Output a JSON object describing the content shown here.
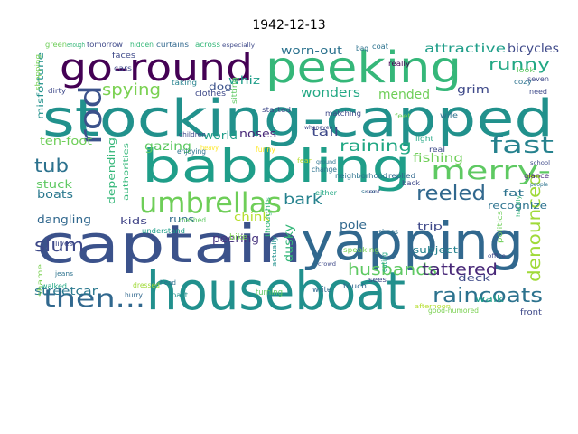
{
  "chart_data": {
    "type": "wordcloud",
    "title": "1942-12-13",
    "background": "#ffffff",
    "palette": "viridis",
    "words": [
      {
        "text": "stocking-capped",
        "color": "#21918c"
      },
      {
        "text": "babbling",
        "color": "#1f9e89"
      },
      {
        "text": "houseboat",
        "color": "#21908d"
      },
      {
        "text": "captain",
        "color": "#3b528b"
      },
      {
        "text": "yapping",
        "color": "#31688e"
      },
      {
        "text": "peeking",
        "color": "#35b779"
      },
      {
        "text": "go-round",
        "color": "#440154"
      },
      {
        "text": "umbrellas",
        "color": "#6ece58"
      },
      {
        "text": "merry-",
        "color": "#5ec962"
      },
      {
        "text": "fast",
        "color": "#26828e"
      },
      {
        "text": "then...",
        "color": "#31688e"
      },
      {
        "text": "rod",
        "color": "#3b528b"
      },
      {
        "text": "tub",
        "color": "#2c728e"
      },
      {
        "text": "slum",
        "color": "#3e4989"
      },
      {
        "text": "reeled",
        "color": "#31688e"
      },
      {
        "text": "raincoats",
        "color": "#2c728e"
      },
      {
        "text": "husbands",
        "color": "#5ec962"
      },
      {
        "text": "tattered",
        "color": "#482878"
      },
      {
        "text": "denounced",
        "color": "#a0da39"
      },
      {
        "text": "spying",
        "color": "#7ad151"
      },
      {
        "text": "bark",
        "color": "#26828e"
      },
      {
        "text": "raining",
        "color": "#22a884"
      },
      {
        "text": "runny",
        "color": "#22a884"
      },
      {
        "text": "fishing",
        "color": "#6ece58"
      },
      {
        "text": "mended",
        "color": "#6ece58"
      },
      {
        "text": "wonders",
        "color": "#22a884"
      },
      {
        "text": "attractive",
        "color": "#1f9e89"
      },
      {
        "text": "bicycles",
        "color": "#3e4989"
      },
      {
        "text": "worn-out",
        "color": "#2c728e"
      },
      {
        "text": "grim",
        "color": "#3e4989"
      },
      {
        "text": "gazing",
        "color": "#5ec962"
      },
      {
        "text": "ten-foot",
        "color": "#6ece58"
      },
      {
        "text": "boats",
        "color": "#2a788e"
      },
      {
        "text": "stuck",
        "color": "#5ec962"
      },
      {
        "text": "dangling",
        "color": "#31688e"
      },
      {
        "text": "misfortune",
        "color": "#21918c"
      },
      {
        "text": "whiz",
        "color": "#1f9e89"
      },
      {
        "text": "dog",
        "color": "#3b528b"
      },
      {
        "text": "tail",
        "color": "#3e4989"
      },
      {
        "text": "pole",
        "color": "#31688e"
      },
      {
        "text": "trip",
        "color": "#3e4989"
      },
      {
        "text": "subject",
        "color": "#26828e"
      },
      {
        "text": "fat",
        "color": "#2c728e"
      },
      {
        "text": "recognize",
        "color": "#2c728e"
      },
      {
        "text": "deck",
        "color": "#3e4989"
      },
      {
        "text": "walk",
        "color": "#1f9e89"
      },
      {
        "text": "dusky",
        "color": "#35b779"
      },
      {
        "text": "kids",
        "color": "#414487"
      },
      {
        "text": "runs",
        "color": "#31688e"
      },
      {
        "text": "chink",
        "color": "#b5de2b"
      },
      {
        "text": "peering",
        "color": "#46337e"
      },
      {
        "text": "streetcar",
        "color": "#2a788e"
      },
      {
        "text": "world",
        "color": "#1f9e89"
      },
      {
        "text": "noses",
        "color": "#482878"
      },
      {
        "text": "depending",
        "color": "#35b779"
      },
      {
        "text": "authorities",
        "color": "#35b779"
      },
      {
        "text": "shame",
        "color": "#7ad151"
      },
      {
        "text": "walked",
        "color": "#22a884"
      },
      {
        "text": "lives",
        "color": "#3e4989"
      },
      {
        "text": "bike",
        "color": "#7ad151"
      },
      {
        "text": "mashed",
        "color": "#5ec962"
      },
      {
        "text": "understand",
        "color": "#1f9e89"
      },
      {
        "text": "hurry",
        "color": "#31688e"
      },
      {
        "text": "dressed",
        "color": "#a0da39"
      },
      {
        "text": "past",
        "color": "#21918c"
      },
      {
        "text": "turning",
        "color": "#5ec962"
      },
      {
        "text": "write",
        "color": "#31688e"
      },
      {
        "text": "actually",
        "color": "#21918c"
      },
      {
        "text": "thoughts",
        "color": "#35b779"
      },
      {
        "text": "speaking",
        "color": "#7ad151"
      },
      {
        "text": "shoes",
        "color": "#2c728e"
      },
      {
        "text": "eating",
        "color": "#22a884"
      },
      {
        "text": "sees",
        "color": "#3e4989"
      },
      {
        "text": "touch",
        "color": "#31688e"
      },
      {
        "text": "glance",
        "color": "#482878"
      },
      {
        "text": "politics",
        "color": "#6ece58"
      },
      {
        "text": "front",
        "color": "#3e4989"
      },
      {
        "text": "good-humored",
        "color": "#7ad151"
      },
      {
        "text": "afternoon",
        "color": "#b5de2b"
      },
      {
        "text": "change",
        "color": "#2c728e"
      },
      {
        "text": "either",
        "color": "#22a884"
      },
      {
        "text": "replied",
        "color": "#31688e"
      },
      {
        "text": "neighborhood",
        "color": "#2c728e"
      },
      {
        "text": "back",
        "color": "#3e4989"
      },
      {
        "text": "real",
        "color": "#3e4989"
      },
      {
        "text": "light",
        "color": "#22a884"
      },
      {
        "text": "sitting",
        "color": "#5ec962"
      },
      {
        "text": "started",
        "color": "#3e4989"
      },
      {
        "text": "matching",
        "color": "#3e4989"
      },
      {
        "text": "wife",
        "color": "#2c728e"
      },
      {
        "text": "need",
        "color": "#3e4989"
      },
      {
        "text": "seven",
        "color": "#3e4989"
      },
      {
        "text": "cozy",
        "color": "#2c728e"
      },
      {
        "text": "look",
        "color": "#5ec962"
      },
      {
        "text": "really",
        "color": "#440154"
      },
      {
        "text": "bag",
        "color": "#2c728e"
      },
      {
        "text": "coat",
        "color": "#2c728e"
      },
      {
        "text": "feet",
        "color": "#6ece58"
      },
      {
        "text": "clothes",
        "color": "#3e4989"
      },
      {
        "text": "taking",
        "color": "#26828e"
      },
      {
        "text": "faces",
        "color": "#3e4989"
      },
      {
        "text": "cars",
        "color": "#3e4989"
      },
      {
        "text": "tomorrow",
        "color": "#3e4989"
      },
      {
        "text": "green",
        "color": "#6ece58"
      },
      {
        "text": "enough",
        "color": "#35b779"
      },
      {
        "text": "hidden",
        "color": "#35b779"
      },
      {
        "text": "curtains",
        "color": "#31688e"
      },
      {
        "text": "across",
        "color": "#35b779"
      },
      {
        "text": "especially",
        "color": "#3e4989"
      },
      {
        "text": "shopping",
        "color": "#7ad151"
      },
      {
        "text": "dirty",
        "color": "#3e4989"
      },
      {
        "text": "heavy",
        "color": "#fde725"
      },
      {
        "text": "enjoying",
        "color": "#2c728e"
      },
      {
        "text": "children",
        "color": "#3e4989"
      },
      {
        "text": "jeans",
        "color": "#2c728e"
      },
      {
        "text": "funny",
        "color": "#fde725"
      },
      {
        "text": "fear",
        "color": "#b5de2b"
      },
      {
        "text": "people",
        "color": "#2c728e"
      },
      {
        "text": "hardly",
        "color": "#35b779"
      },
      {
        "text": "school",
        "color": "#3e4989"
      },
      {
        "text": "office",
        "color": "#3e4989"
      },
      {
        "text": "sure",
        "color": "#2c728e"
      },
      {
        "text": "head",
        "color": "#2c728e"
      },
      {
        "text": "crowd",
        "color": "#3e4989"
      },
      {
        "text": "whenever",
        "color": "#3e4989"
      },
      {
        "text": "ground",
        "color": "#2c728e"
      },
      {
        "text": "sent",
        "color": "#3e4989"
      }
    ]
  }
}
